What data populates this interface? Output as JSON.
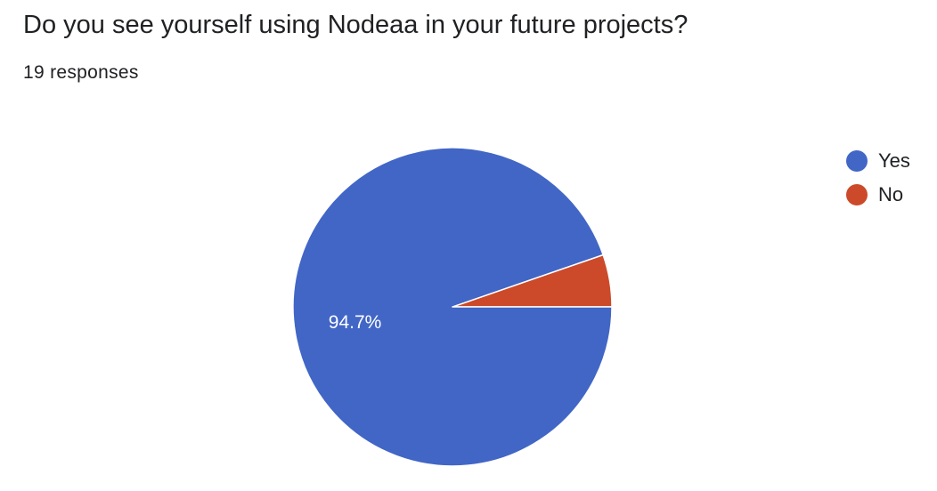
{
  "question": {
    "title": "Do you see yourself using Nodeaa in your future projects?",
    "responses_label": "19 responses"
  },
  "chart_data": {
    "type": "pie",
    "categories": [
      "Yes",
      "No"
    ],
    "values": [
      94.7,
      5.3
    ],
    "colors": [
      "#4166c6",
      "#cc4a29"
    ],
    "slice_labels": [
      "94.7%",
      ""
    ],
    "label_color": "#ffffff",
    "legend_placement": "right",
    "start_angle_deg": 90,
    "direction": "clockwise"
  },
  "legend": {
    "items": [
      {
        "label": "Yes",
        "color": "#4166c6"
      },
      {
        "label": "No",
        "color": "#cc4a29"
      }
    ]
  }
}
